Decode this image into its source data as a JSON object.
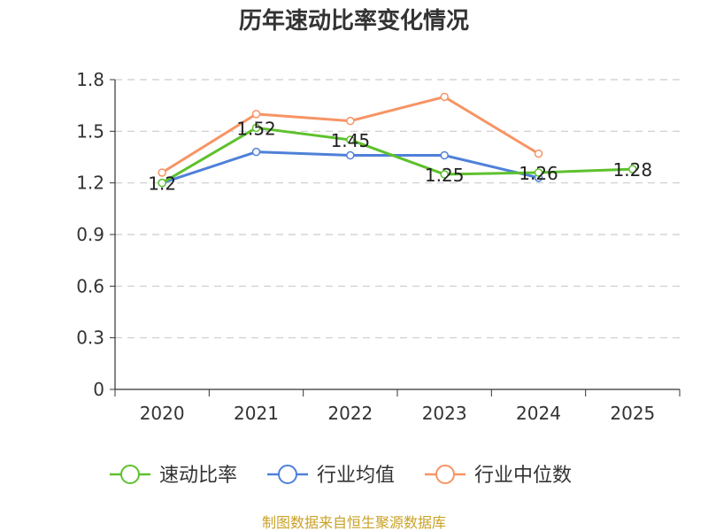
{
  "chart_data": {
    "type": "line",
    "title": "历年速动比率变化情况",
    "categories": [
      "2020",
      "2021",
      "2022",
      "2023",
      "2024",
      "2025"
    ],
    "ylim": [
      0,
      1.8
    ],
    "yticks": [
      "0",
      "0.3",
      "0.6",
      "0.9",
      "1.2",
      "1.5",
      "1.8"
    ],
    "grid": true,
    "legend_position": "bottom",
    "series": [
      {
        "name": "速动比率",
        "color": "#5ec12d",
        "values": [
          1.2,
          1.52,
          1.45,
          1.25,
          1.26,
          1.28
        ],
        "labels": [
          "1.2",
          "1.52",
          "1.45",
          "1.25",
          "1.26",
          "1.28"
        ]
      },
      {
        "name": "行业均值",
        "color": "#4f80d9",
        "values": [
          1.2,
          1.38,
          1.36,
          1.36,
          1.23,
          null
        ]
      },
      {
        "name": "行业中位数",
        "color": "#f79464",
        "values": [
          1.26,
          1.6,
          1.56,
          1.7,
          1.37,
          null
        ]
      }
    ]
  },
  "source": "制图数据来自恒生聚源数据库"
}
